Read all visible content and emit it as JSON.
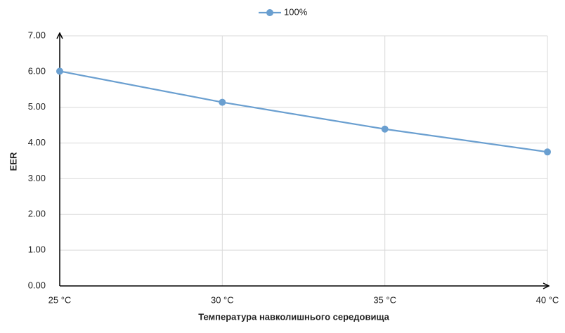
{
  "chart_data": {
    "type": "line",
    "categories": [
      "25 °C",
      "30 °C",
      "35 °C",
      "40 °C"
    ],
    "series": [
      {
        "name": "100%",
        "color": "#6a9fd0",
        "values": [
          6.01,
          5.14,
          4.39,
          3.75
        ]
      }
    ],
    "x_label": "Температура навколишнього середовища",
    "y_label": "EER",
    "ylim": [
      0,
      7
    ],
    "yticks": [
      {
        "value": 0,
        "label": "0.00"
      },
      {
        "value": 1,
        "label": "1.00"
      },
      {
        "value": 2,
        "label": "2.00"
      },
      {
        "value": 3,
        "label": "3.00"
      },
      {
        "value": 4,
        "label": "4.00"
      },
      {
        "value": 5,
        "label": "5.00"
      },
      {
        "value": 6,
        "label": "6.00"
      },
      {
        "value": 7,
        "label": "7.00"
      }
    ],
    "grid": true,
    "legend": "top"
  }
}
